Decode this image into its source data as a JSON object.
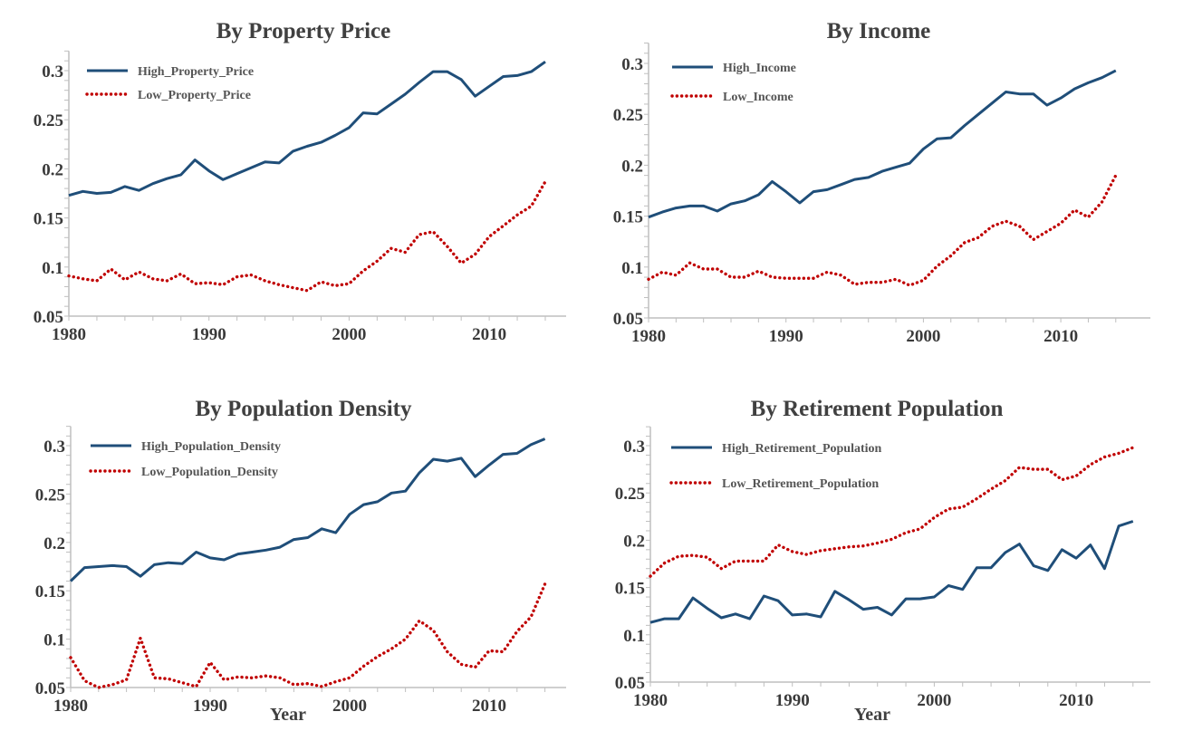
{
  "colors": {
    "high": "#1f4e79",
    "low": "#c00000",
    "axis": "#bfbfbf"
  },
  "chart_data": [
    {
      "type": "line",
      "title": "By Property Price",
      "xlabel": "",
      "ylim": [
        0.05,
        0.32
      ],
      "xlim": [
        1980,
        2014
      ],
      "xticks": [
        "1980",
        "1990",
        "2000",
        "2010"
      ],
      "yticks": [
        "0.05",
        "0.1",
        "0.15",
        "0.2",
        "0.25",
        "0.3"
      ],
      "legend": "top-left",
      "series": [
        {
          "name": "High_Property_Price",
          "style": "solid",
          "values": [
            0.173,
            0.177,
            0.175,
            0.176,
            0.182,
            0.178,
            0.185,
            0.19,
            0.194,
            0.209,
            0.198,
            0.189,
            0.195,
            0.201,
            0.207,
            0.206,
            0.218,
            0.223,
            0.227,
            0.234,
            0.242,
            0.257,
            0.256,
            0.266,
            0.276,
            0.288,
            0.299,
            0.299,
            0.291,
            0.274,
            0.284,
            0.294,
            0.295,
            0.299,
            0.309
          ]
        },
        {
          "name": "Low_Property_Price",
          "style": "dotted",
          "values": [
            0.091,
            0.088,
            0.086,
            0.098,
            0.087,
            0.095,
            0.088,
            0.086,
            0.093,
            0.083,
            0.084,
            0.082,
            0.09,
            0.092,
            0.086,
            0.082,
            0.079,
            0.076,
            0.085,
            0.081,
            0.083,
            0.096,
            0.106,
            0.119,
            0.115,
            0.133,
            0.136,
            0.121,
            0.104,
            0.113,
            0.131,
            0.142,
            0.153,
            0.162,
            0.187
          ]
        }
      ]
    },
    {
      "type": "line",
      "title": "By Income",
      "xlabel": "",
      "ylim": [
        0.05,
        0.32
      ],
      "xlim": [
        1980,
        2014
      ],
      "xticks": [
        "1980",
        "1990",
        "2000",
        "2010"
      ],
      "yticks": [
        "0.05",
        "0.1",
        "0.15",
        "0.2",
        "0.25",
        "0.3"
      ],
      "legend": "top-left",
      "series": [
        {
          "name": "High_Income",
          "style": "solid",
          "values": [
            0.149,
            0.154,
            0.158,
            0.16,
            0.16,
            0.155,
            0.162,
            0.165,
            0.171,
            0.184,
            0.174,
            0.163,
            0.174,
            0.176,
            0.181,
            0.186,
            0.188,
            0.194,
            0.198,
            0.202,
            0.216,
            0.226,
            0.227,
            0.239,
            0.25,
            0.261,
            0.272,
            0.27,
            0.27,
            0.259,
            0.266,
            0.275,
            0.281,
            0.286,
            0.293
          ]
        },
        {
          "name": "Low_Income",
          "style": "dotted",
          "values": [
            0.088,
            0.095,
            0.092,
            0.104,
            0.098,
            0.098,
            0.09,
            0.09,
            0.096,
            0.09,
            0.089,
            0.089,
            0.089,
            0.095,
            0.092,
            0.083,
            0.085,
            0.085,
            0.088,
            0.082,
            0.087,
            0.101,
            0.111,
            0.124,
            0.129,
            0.14,
            0.145,
            0.14,
            0.127,
            0.135,
            0.143,
            0.156,
            0.149,
            0.164,
            0.19
          ]
        }
      ]
    },
    {
      "type": "line",
      "title": "By Population Density",
      "xlabel": "Year",
      "ylim": [
        0.05,
        0.32
      ],
      "xlim": [
        1980,
        2014
      ],
      "xticks": [
        "1980",
        "1990",
        "2000",
        "2010"
      ],
      "yticks": [
        "0.05",
        "0.1",
        "0.15",
        "0.2",
        "0.25",
        "0.3"
      ],
      "legend": "top-left",
      "series": [
        {
          "name": "High_Population_Density",
          "style": "solid",
          "values": [
            0.16,
            0.174,
            0.175,
            0.176,
            0.175,
            0.165,
            0.177,
            0.179,
            0.178,
            0.19,
            0.184,
            0.182,
            0.188,
            0.19,
            0.192,
            0.195,
            0.203,
            0.205,
            0.214,
            0.21,
            0.229,
            0.239,
            0.242,
            0.251,
            0.253,
            0.272,
            0.286,
            0.284,
            0.287,
            0.268,
            0.28,
            0.291,
            0.292,
            0.301,
            0.307
          ]
        },
        {
          "name": "Low_Population_Density",
          "style": "dotted",
          "values": [
            0.081,
            0.057,
            0.05,
            0.053,
            0.058,
            0.101,
            0.06,
            0.059,
            0.055,
            0.051,
            0.076,
            0.058,
            0.061,
            0.06,
            0.062,
            0.06,
            0.053,
            0.054,
            0.051,
            0.056,
            0.06,
            0.072,
            0.082,
            0.09,
            0.1,
            0.119,
            0.109,
            0.087,
            0.074,
            0.071,
            0.088,
            0.087,
            0.108,
            0.123,
            0.157
          ]
        }
      ]
    },
    {
      "type": "line",
      "title": "By Retirement Population",
      "xlabel": "Year",
      "ylim": [
        0.05,
        0.32
      ],
      "xlim": [
        1980,
        2014
      ],
      "xticks": [
        "1980",
        "1990",
        "2000",
        "2010"
      ],
      "yticks": [
        "0.05",
        "0.1",
        "0.15",
        "0.2",
        "0.25",
        "0.3"
      ],
      "legend": "top-left",
      "series": [
        {
          "name": "High_Retirement_Population",
          "style": "solid",
          "values": [
            0.113,
            0.117,
            0.117,
            0.139,
            0.128,
            0.118,
            0.122,
            0.117,
            0.141,
            0.136,
            0.121,
            0.122,
            0.119,
            0.146,
            0.137,
            0.127,
            0.129,
            0.121,
            0.138,
            0.138,
            0.14,
            0.152,
            0.148,
            0.171,
            0.171,
            0.187,
            0.196,
            0.173,
            0.168,
            0.19,
            0.181,
            0.195,
            0.17,
            0.215,
            0.22
          ]
        },
        {
          "name": "Low_Retirement_Population",
          "style": "dotted",
          "values": [
            0.162,
            0.176,
            0.183,
            0.184,
            0.182,
            0.17,
            0.178,
            0.178,
            0.178,
            0.195,
            0.188,
            0.185,
            0.189,
            0.191,
            0.193,
            0.194,
            0.197,
            0.201,
            0.208,
            0.212,
            0.224,
            0.233,
            0.235,
            0.244,
            0.254,
            0.263,
            0.277,
            0.275,
            0.275,
            0.264,
            0.268,
            0.28,
            0.288,
            0.292,
            0.298
          ]
        }
      ]
    }
  ]
}
